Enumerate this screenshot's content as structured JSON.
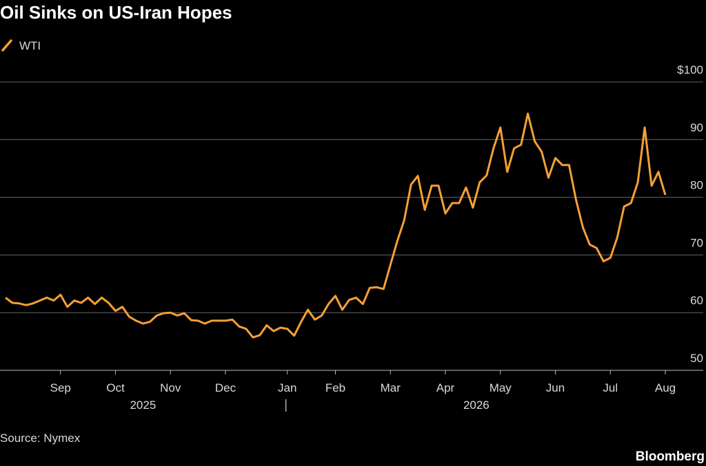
{
  "chart_data": {
    "type": "line",
    "title": "Oil Sinks on US-Iran Hopes",
    "source": "Source: Nymex",
    "brand": "Bloomberg",
    "legend": "top-left",
    "grid": true,
    "xlim": [
      0,
      96
    ],
    "xticks": [
      {
        "value": 8,
        "label": "Sep"
      },
      {
        "value": 16,
        "label": "Oct"
      },
      {
        "value": 24,
        "label": "Nov"
      },
      {
        "value": 32,
        "label": "Dec"
      },
      {
        "value": 41,
        "label": "Jan"
      },
      {
        "value": 48,
        "label": "Feb"
      },
      {
        "value": 56,
        "label": "Mar"
      },
      {
        "value": 64,
        "label": "Apr"
      },
      {
        "value": 72,
        "label": "May"
      },
      {
        "value": 80,
        "label": "Jun"
      },
      {
        "value": 88,
        "label": "Jul"
      },
      {
        "value": 96,
        "label": "Aug"
      }
    ],
    "years": [
      "2025",
      "2026"
    ],
    "ylim": [
      50,
      100
    ],
    "yticks": [
      50,
      60,
      70,
      80,
      90,
      {
        "value": 100,
        "label": "$100"
      }
    ],
    "series": [
      {
        "name": "WTI",
        "color": "#f7a035",
        "values": [
          62.6,
          61.7,
          61.6,
          61.3,
          61.6,
          62.1,
          62.6,
          62.1,
          63.1,
          61,
          62.1,
          61.7,
          62.6,
          61.5,
          62.6,
          61.7,
          60.3,
          61,
          59.3,
          58.6,
          58.1,
          58.4,
          59.5,
          59.9,
          60,
          59.5,
          59.9,
          58.7,
          58.6,
          58.1,
          58.6,
          58.6,
          58.6,
          58.8,
          57.6,
          57.2,
          55.7,
          56.1,
          57.8,
          56.8,
          57.4,
          57.2,
          56,
          58.4,
          60.5,
          58.8,
          59.5,
          61.5,
          62.9,
          60.5,
          62.2,
          62.6,
          61.5,
          64.3,
          64.4,
          64.1,
          68.3,
          72.4,
          76,
          82.2,
          83.7,
          77.8,
          82,
          82,
          77.2,
          79,
          79,
          81.7,
          78.2,
          82.6,
          83.8,
          88.5,
          92.1,
          84.4,
          88.5,
          89.1,
          94.5,
          89.7,
          87.9,
          83.4,
          86.8,
          85.6,
          85.6,
          79.6,
          74.8,
          71.8,
          71.2,
          68.9,
          69.5,
          73,
          78.4,
          79,
          82.6,
          92.1,
          82,
          84.4,
          80.4
        ]
      }
    ]
  }
}
